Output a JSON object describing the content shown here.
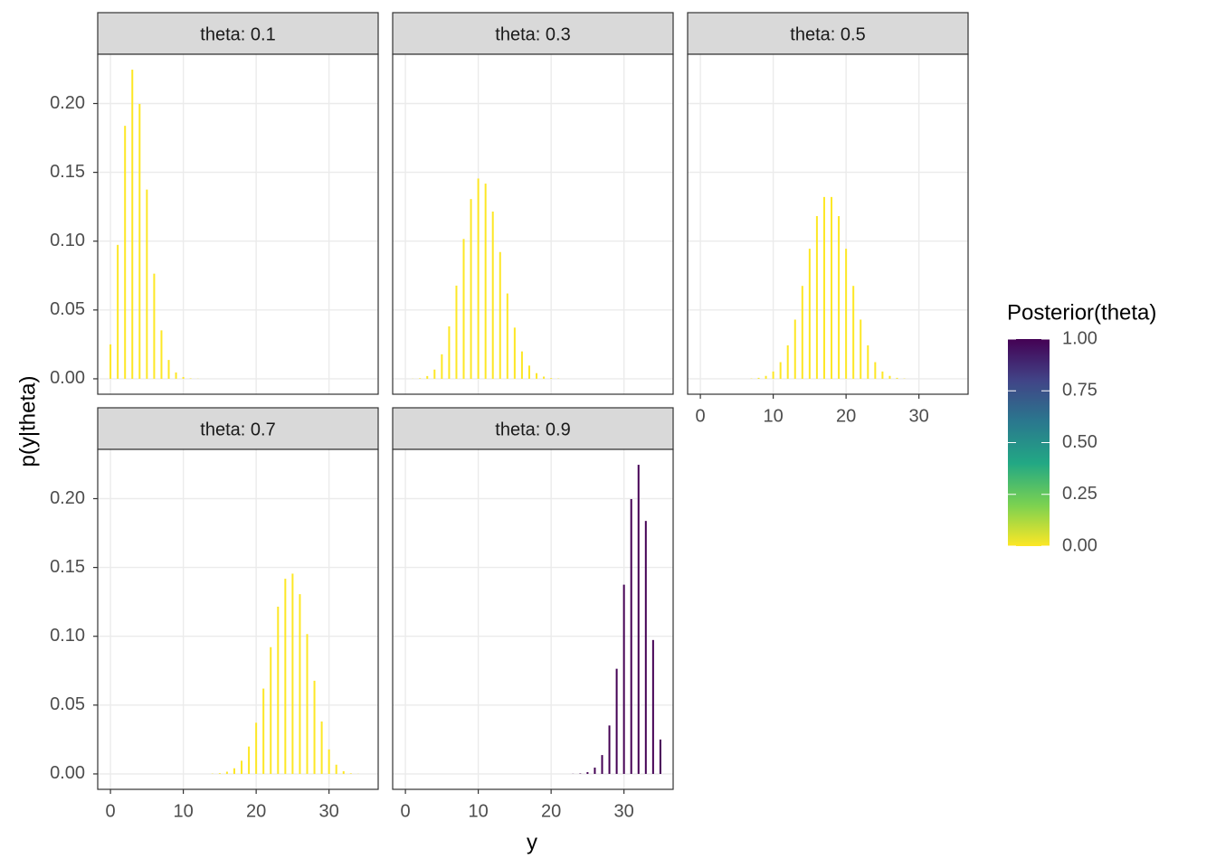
{
  "chart_data": {
    "type": "bar",
    "x_label": "y",
    "y_label": "p(y|theta)",
    "x": [
      0,
      1,
      2,
      3,
      4,
      5,
      6,
      7,
      8,
      9,
      10,
      11,
      12,
      13,
      14,
      15,
      16,
      17,
      18,
      19,
      20,
      21,
      22,
      23,
      24,
      25,
      26,
      27,
      28,
      29,
      30,
      31,
      32,
      33,
      34,
      35
    ],
    "xlim": [
      -1.75,
      36.75
    ],
    "xticks": [
      0,
      10,
      20,
      30
    ],
    "ylim": [
      -0.0112,
      0.2358
    ],
    "yticks": [
      {
        "value": 0,
        "label": "0.00"
      },
      {
        "value": 0.05,
        "label": "0.05"
      },
      {
        "value": 0.1,
        "label": "0.10"
      },
      {
        "value": 0.15,
        "label": "0.15"
      },
      {
        "value": 0.2,
        "label": "0.20"
      }
    ],
    "grid": true,
    "facets": [
      {
        "title": "theta: 0.1",
        "color": "#fde725",
        "values": [
          0.025,
          0.0973,
          0.1838,
          0.2246,
          0.1997,
          0.1375,
          0.0764,
          0.0352,
          0.0137,
          0.0046,
          0.0013,
          0.0003,
          0.0001,
          0,
          0,
          0,
          0,
          0,
          0,
          0,
          0,
          0,
          0,
          0,
          0,
          0,
          0,
          0,
          0,
          0,
          0,
          0,
          0,
          0,
          0,
          0
        ]
      },
      {
        "title": "theta: 0.3",
        "color": "#fde725",
        "values": [
          0,
          0.0001,
          0.0004,
          0.002,
          0.0067,
          0.0178,
          0.0381,
          0.0677,
          0.1016,
          0.1306,
          0.1455,
          0.1418,
          0.1215,
          0.0921,
          0.062,
          0.0372,
          0.0199,
          0.0096,
          0.0041,
          0.0016,
          0.0005,
          0.0002,
          0,
          0,
          0,
          0,
          0,
          0,
          0,
          0,
          0,
          0,
          0,
          0,
          0,
          0
        ]
      },
      {
        "title": "theta: 0.5",
        "color": "#fde725",
        "values": [
          0,
          0,
          0,
          0,
          0,
          0,
          0,
          0.0002,
          0.0007,
          0.0021,
          0.0053,
          0.0121,
          0.0243,
          0.043,
          0.0675,
          0.0945,
          0.1182,
          0.1321,
          0.1321,
          0.1182,
          0.0945,
          0.0675,
          0.043,
          0.0243,
          0.0121,
          0.0053,
          0.0021,
          0.0007,
          0.0002,
          0,
          0,
          0,
          0,
          0,
          0,
          0
        ]
      },
      {
        "title": "theta: 0.7",
        "color": "#fde725",
        "values": [
          0,
          0,
          0,
          0,
          0,
          0,
          0,
          0,
          0,
          0,
          0,
          0,
          0,
          0,
          0.0002,
          0.0005,
          0.0016,
          0.0041,
          0.0096,
          0.0199,
          0.0372,
          0.062,
          0.0921,
          0.1215,
          0.1418,
          0.1455,
          0.1306,
          0.1016,
          0.0677,
          0.0381,
          0.0178,
          0.0067,
          0.002,
          0.0004,
          0.0001,
          0
        ]
      },
      {
        "title": "theta: 0.9",
        "color": "#440154",
        "values": [
          0,
          0,
          0,
          0,
          0,
          0,
          0,
          0,
          0,
          0,
          0,
          0,
          0,
          0,
          0,
          0,
          0,
          0,
          0,
          0,
          0,
          0,
          0,
          0.0001,
          0.0003,
          0.0013,
          0.0046,
          0.0137,
          0.0352,
          0.0764,
          0.1375,
          0.1997,
          0.2246,
          0.1838,
          0.0973,
          0.025
        ]
      }
    ],
    "colorbar": {
      "title": "Posterior(theta)",
      "limits": [
        0,
        1
      ],
      "colors": [
        "#fde725",
        "#7ad151",
        "#22a884",
        "#2a788e",
        "#414487",
        "#440154"
      ],
      "ticks": [
        {
          "value": 0,
          "label": "0.00"
        },
        {
          "value": 0.25,
          "label": "0.25"
        },
        {
          "value": 0.5,
          "label": "0.50"
        },
        {
          "value": 0.75,
          "label": "0.75"
        },
        {
          "value": 1,
          "label": "1.00"
        }
      ]
    }
  }
}
